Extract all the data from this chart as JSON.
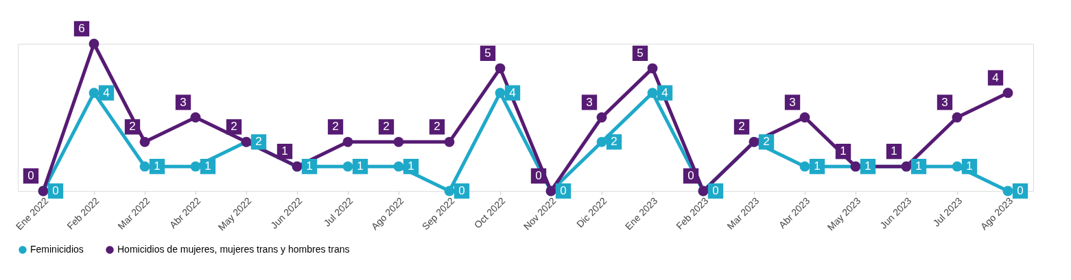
{
  "chart_data": {
    "type": "line",
    "categories": [
      "Ene 2022",
      "Feb 2022",
      "Mar 2022",
      "Abr 2022",
      "May 2022",
      "Jun 2022",
      "Jul 2022",
      "Ago 2022",
      "Sep 2022",
      "Oct 2022",
      "Nov 2022",
      "Dic 2022",
      "Ene 2023",
      "Feb 2023",
      "Mar 2023",
      "Abr 2023",
      "May 2023",
      "Jun 2023",
      "Jul 2023",
      "Ago 2023"
    ],
    "series": [
      {
        "name": "Feminicidios",
        "color": "#1fa9c9",
        "values": [
          0,
          4,
          1,
          1,
          2,
          1,
          1,
          1,
          0,
          4,
          0,
          2,
          4,
          0,
          2,
          1,
          1,
          1,
          1,
          0
        ]
      },
      {
        "name": "Homicidios de mujeres, mujeres trans y hombres trans",
        "color": "#561b73",
        "values": [
          0,
          6,
          2,
          3,
          2,
          1,
          2,
          2,
          2,
          5,
          0,
          3,
          5,
          0,
          2,
          3,
          1,
          1,
          3,
          4
        ]
      }
    ],
    "data_labels": true,
    "marker": "circle",
    "line_style": "solid",
    "grid": false,
    "legend": "bottom",
    "tick_labels": "x"
  }
}
